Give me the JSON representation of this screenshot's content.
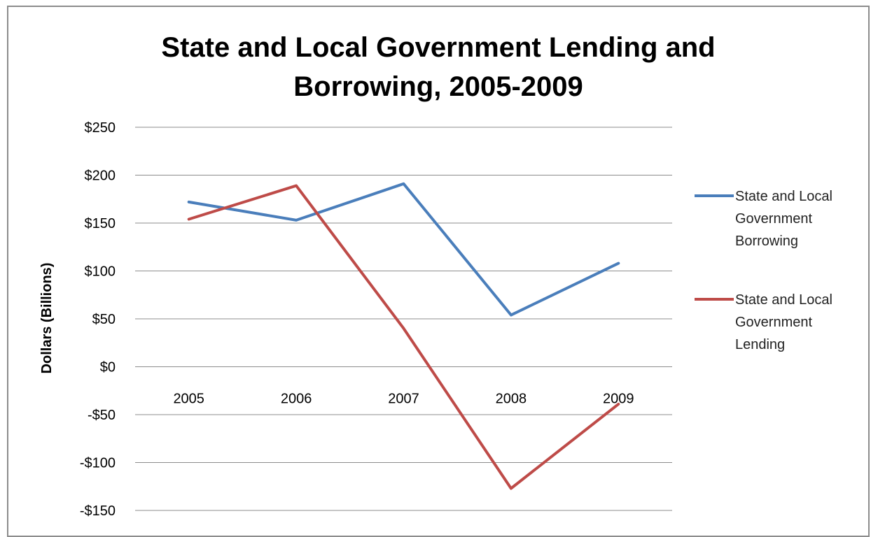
{
  "chart_data": {
    "type": "line",
    "title_lines": [
      "State and Local Government Lending and",
      "Borrowing, 2005-2009"
    ],
    "ylabel": "Dollars (Billions)",
    "xlabel": "",
    "categories": [
      "2005",
      "2006",
      "2007",
      "2008",
      "2009"
    ],
    "ylim": [
      -150,
      250
    ],
    "yticks": [
      250,
      200,
      150,
      100,
      50,
      0,
      -50,
      -100,
      -150
    ],
    "ytick_labels": [
      "$250",
      "$200",
      "$150",
      "$100",
      "$50",
      "$0",
      "-$50",
      "-$100",
      "-$150"
    ],
    "grid": true,
    "legend_position": "right",
    "series": [
      {
        "name": "State and Local Government Borrowing",
        "legend_lines": [
          "State and Local",
          "Government",
          "Borrowing"
        ],
        "color": "#4a7ebb",
        "values": [
          172,
          153,
          191,
          54,
          108
        ]
      },
      {
        "name": "State and Local Government Lending",
        "legend_lines": [
          "State and Local",
          "Government",
          "Lending"
        ],
        "color": "#be4b48",
        "values": [
          154,
          189,
          40,
          -127,
          -39
        ]
      }
    ]
  }
}
